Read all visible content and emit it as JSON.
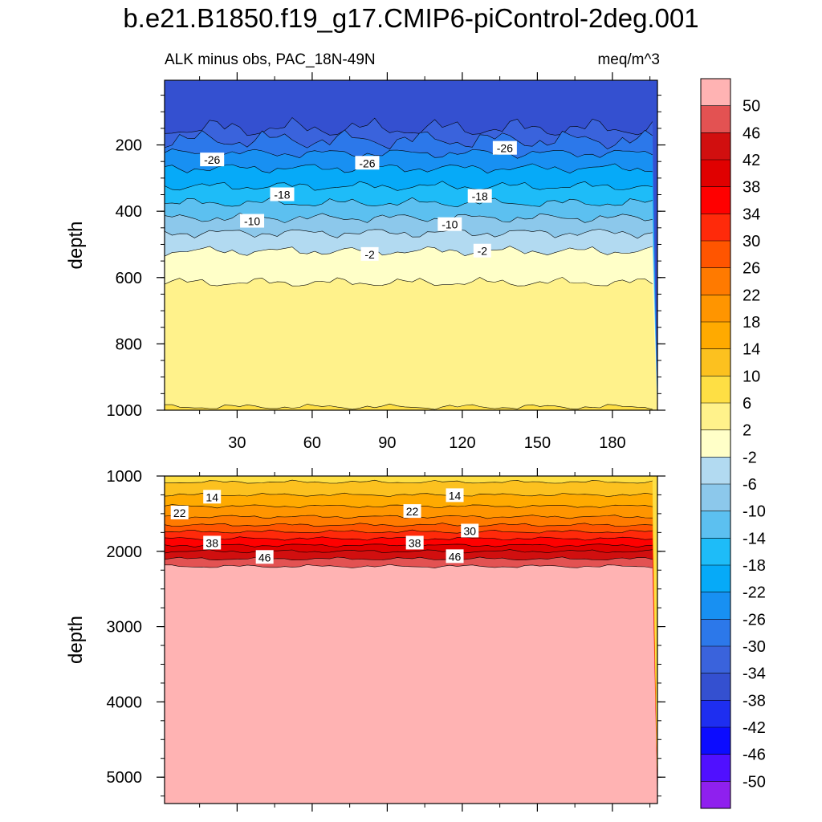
{
  "title": "b.e21.B1850.f19_g17.CMIP6-piControl-2deg.001",
  "subtitle_left": "ALK minus obs, PAC_18N-49N",
  "subtitle_right": "meq/m^3",
  "chart_data": [
    {
      "type": "heatmap",
      "panel": "upper",
      "ylabel": "depth",
      "xlim": [
        1,
        198
      ],
      "ylim": [
        1000,
        5
      ],
      "y_reversed": true,
      "x_ticks": [
        30,
        60,
        90,
        120,
        150,
        180
      ],
      "y_ticks": [
        200,
        400,
        600,
        800,
        1000
      ],
      "contour_boundaries_depth": [
        {
          "level": -34,
          "depth": 150
        },
        {
          "level": -30,
          "depth": 185
        },
        {
          "level": -26,
          "depth": 225
        },
        {
          "level": -22,
          "depth": 270
        },
        {
          "level": -18,
          "depth": 325
        },
        {
          "level": -14,
          "depth": 375
        },
        {
          "level": -10,
          "depth": 420
        },
        {
          "level": -6,
          "depth": 465
        },
        {
          "level": -2,
          "depth": 520
        },
        {
          "level": 2,
          "depth": 615
        },
        {
          "level": 6,
          "depth": 990
        }
      ],
      "contour_labels": [
        {
          "text": "-26",
          "x": 20,
          "depth": 245
        },
        {
          "text": "-26",
          "x": 82,
          "depth": 255
        },
        {
          "text": "-26",
          "x": 137,
          "depth": 210
        },
        {
          "text": "-18",
          "x": 48,
          "depth": 350
        },
        {
          "text": "-18",
          "x": 127,
          "depth": 355
        },
        {
          "text": "-10",
          "x": 36,
          "depth": 430
        },
        {
          "text": "-10",
          "x": 115,
          "depth": 440
        },
        {
          "text": "-2",
          "x": 83,
          "depth": 530
        },
        {
          "text": "-2",
          "x": 128,
          "depth": 520
        }
      ]
    },
    {
      "type": "heatmap",
      "panel": "lower",
      "ylabel": "depth",
      "xlim": [
        1,
        198
      ],
      "ylim": [
        5350,
        1000
      ],
      "y_reversed": true,
      "y_ticks": [
        1000,
        2000,
        3000,
        4000,
        5000
      ],
      "contour_boundaries_depth": [
        {
          "level": 10,
          "depth": 1080
        },
        {
          "level": 14,
          "depth": 1250
        },
        {
          "level": 18,
          "depth": 1400
        },
        {
          "level": 22,
          "depth": 1540
        },
        {
          "level": 26,
          "depth": 1650
        },
        {
          "level": 30,
          "depth": 1740
        },
        {
          "level": 34,
          "depth": 1830
        },
        {
          "level": 38,
          "depth": 1920
        },
        {
          "level": 42,
          "depth": 2000
        },
        {
          "level": 46,
          "depth": 2100
        },
        {
          "level": 50,
          "depth": 2200
        }
      ],
      "contour_labels": [
        {
          "text": "14",
          "x": 20,
          "depth": 1280
        },
        {
          "text": "14",
          "x": 117,
          "depth": 1260
        },
        {
          "text": "22",
          "x": 7,
          "depth": 1490
        },
        {
          "text": "22",
          "x": 100,
          "depth": 1470
        },
        {
          "text": "30",
          "x": 123,
          "depth": 1730
        },
        {
          "text": "38",
          "x": 20,
          "depth": 1890
        },
        {
          "text": "38",
          "x": 101,
          "depth": 1890
        },
        {
          "text": "46",
          "x": 41,
          "depth": 2080
        },
        {
          "text": "46",
          "x": 117,
          "depth": 2070
        }
      ]
    }
  ],
  "colorbar": {
    "labels": [
      "50",
      "46",
      "42",
      "38",
      "34",
      "30",
      "26",
      "22",
      "18",
      "14",
      "10",
      "6",
      "2",
      "-2",
      "-6",
      "-10",
      "-14",
      "-18",
      "-22",
      "-26",
      "-30",
      "-34",
      "-38",
      "-42",
      "-46",
      "-50"
    ],
    "colors": [
      "#ffb3b3",
      "#e35252",
      "#d10f0f",
      "#e00000",
      "#ff0000",
      "#ff2a0a",
      "#ff5500",
      "#ff7a00",
      "#ff9500",
      "#ffaa00",
      "#fcc11f",
      "#fedf44",
      "#fff28b",
      "#ffffc8",
      "#b2daf1",
      "#8cc8eb",
      "#5cc0f0",
      "#1ebcf8",
      "#06aaf8",
      "#1890f2",
      "#2c78ea",
      "#3a63dc",
      "#3450d0",
      "#1e2ef0",
      "#0c0cff",
      "#5010ff",
      "#8f20ee"
    ]
  },
  "colors": {
    "contour_line": "#000000",
    "background": "#ffffff"
  }
}
